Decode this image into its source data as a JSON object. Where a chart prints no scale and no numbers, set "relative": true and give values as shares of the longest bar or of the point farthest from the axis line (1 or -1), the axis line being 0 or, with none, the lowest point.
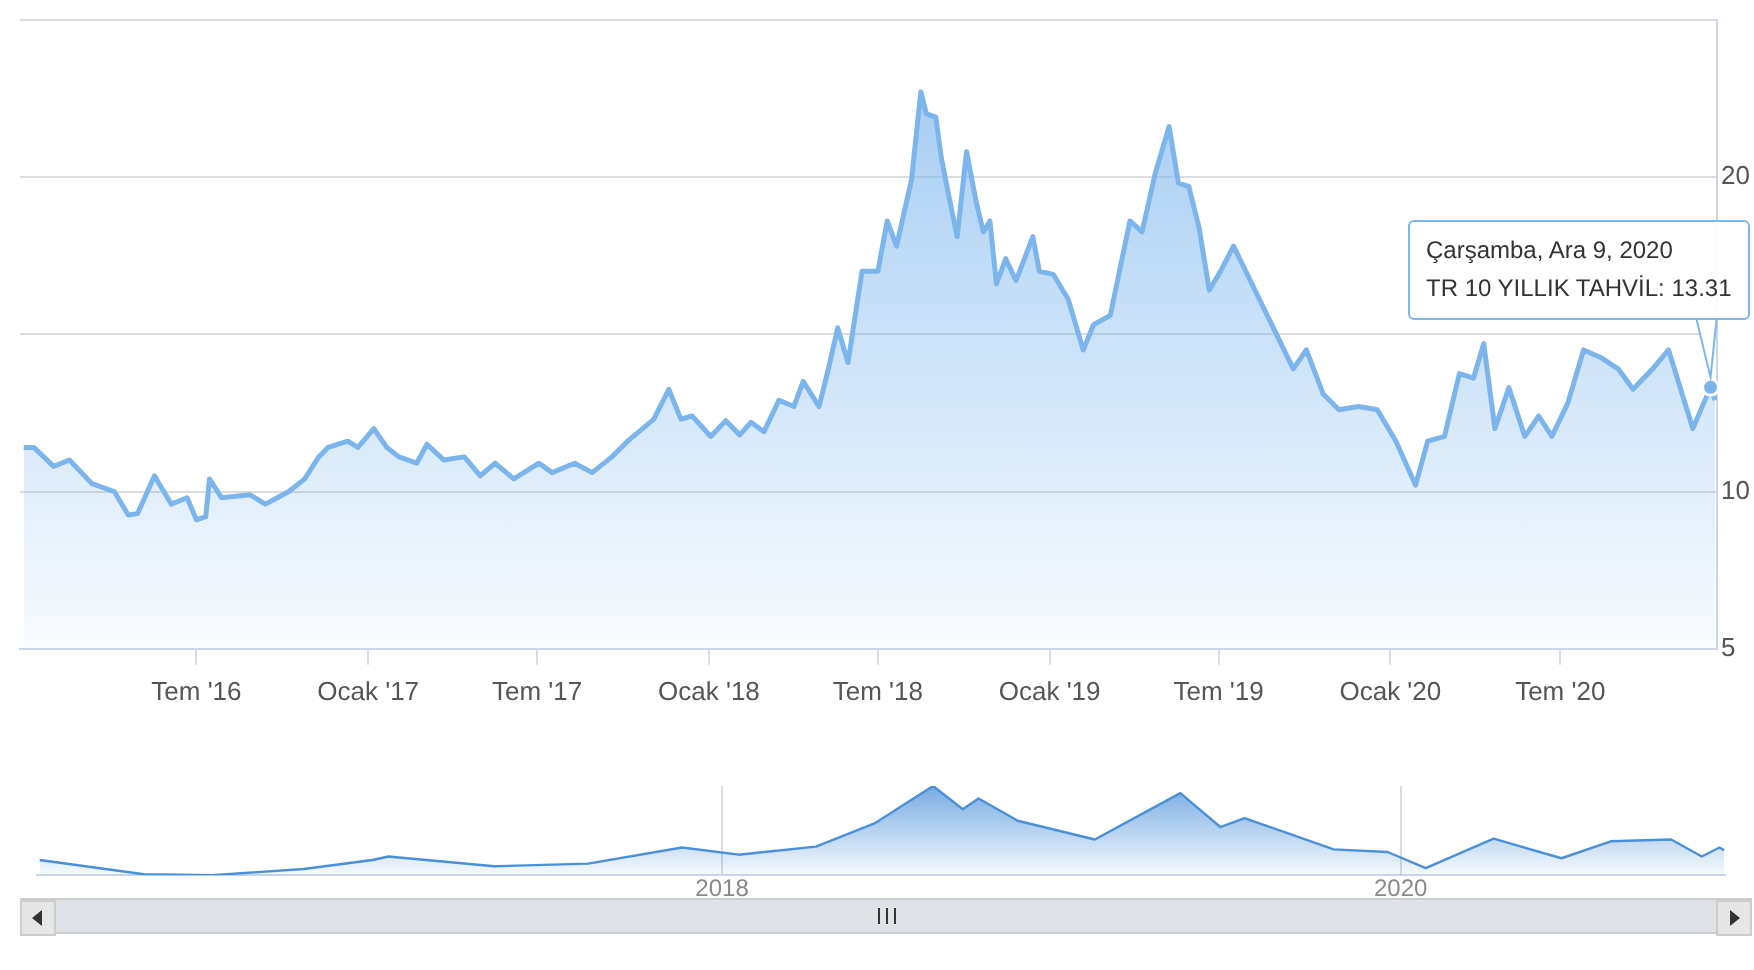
{
  "chart_data": [
    {
      "type": "area",
      "xlim": [
        "2015-12-25",
        "2020-12-16"
      ],
      "xticks": [
        {
          "value": "2016-07-01",
          "label": "Tem '16"
        },
        {
          "value": "2017-01-01",
          "label": "Ocak '17"
        },
        {
          "value": "2017-07-01",
          "label": "Tem '17"
        },
        {
          "value": "2018-01-01",
          "label": "Ocak '18"
        },
        {
          "value": "2018-07-01",
          "label": "Tem '18"
        },
        {
          "value": "2019-01-01",
          "label": "Ocak '19"
        },
        {
          "value": "2019-07-01",
          "label": "Tem '19"
        },
        {
          "value": "2020-01-01",
          "label": "Ocak '20"
        },
        {
          "value": "2020-07-01",
          "label": "Tem '20"
        }
      ],
      "ylim": [
        5,
        25
      ],
      "yticks": [
        5,
        10,
        {
          "value": 15,
          "label": null
        },
        20,
        {
          "value": 25,
          "label": null
        }
      ],
      "grid": "y",
      "legend": false,
      "x": [
        "2015-12-29",
        "2016-01-09",
        "2016-01-30",
        "2016-02-16",
        "2016-03-11",
        "2016-04-04",
        "2016-04-19",
        "2016-04-29",
        "2016-05-17",
        "2016-06-04",
        "2016-06-21",
        "2016-07-01",
        "2016-07-11",
        "2016-07-15",
        "2016-07-28",
        "2016-08-27",
        "2016-09-13",
        "2016-10-08",
        "2016-10-25",
        "2016-11-09",
        "2016-11-19",
        "2016-12-10",
        "2016-12-21",
        "2017-01-07",
        "2017-01-21",
        "2017-02-03",
        "2017-02-22",
        "2017-03-05",
        "2017-03-23",
        "2017-04-14",
        "2017-05-01",
        "2017-05-17",
        "2017-06-06",
        "2017-07-03",
        "2017-07-17",
        "2017-08-10",
        "2017-08-29",
        "2017-09-19",
        "2017-10-06",
        "2017-11-03",
        "2017-11-19",
        "2017-12-02",
        "2017-12-14",
        "2018-01-03",
        "2018-01-19",
        "2018-02-03",
        "2018-02-15",
        "2018-03-01",
        "2018-03-17",
        "2018-04-02",
        "2018-04-12",
        "2018-04-29",
        "2018-05-09",
        "2018-05-19",
        "2018-05-30",
        "2018-06-14",
        "2018-07-01",
        "2018-07-11",
        "2018-07-21",
        "2018-08-06",
        "2018-08-16",
        "2018-08-22",
        "2018-09-01",
        "2018-09-07",
        "2018-09-17",
        "2018-09-24",
        "2018-10-04",
        "2018-10-14",
        "2018-10-22",
        "2018-10-29",
        "2018-11-05",
        "2018-11-15",
        "2018-11-26",
        "2018-12-14",
        "2018-12-21",
        "2019-01-05",
        "2019-01-21",
        "2019-02-06",
        "2019-02-17",
        "2019-03-07",
        "2019-03-28",
        "2019-04-10",
        "2019-04-24",
        "2019-05-09",
        "2019-05-19",
        "2019-05-30",
        "2019-06-10",
        "2019-06-21",
        "2019-07-03",
        "2019-07-17",
        "2019-09-19",
        "2019-10-03",
        "2019-10-21",
        "2019-11-07",
        "2019-11-28",
        "2019-12-18",
        "2020-01-07",
        "2020-01-28",
        "2020-02-10",
        "2020-02-28",
        "2020-03-15",
        "2020-03-30",
        "2020-04-10",
        "2020-04-22",
        "2020-05-07",
        "2020-05-24",
        "2020-06-08",
        "2020-06-22",
        "2020-07-09",
        "2020-07-26",
        "2020-08-14",
        "2020-09-01",
        "2020-09-17",
        "2020-10-08",
        "2020-10-25",
        "2020-11-20",
        "2020-12-09",
        "2020-12-14"
      ],
      "series": [
        {
          "color": "#7cb5ec",
          "values": [
            11.4,
            11.4,
            10.8,
            11.0,
            10.25,
            10.0,
            9.25,
            9.3,
            10.5,
            9.6,
            9.8,
            9.1,
            9.2,
            10.4,
            9.8,
            9.9,
            9.6,
            10.0,
            10.4,
            11.1,
            11.4,
            11.6,
            11.4,
            12.0,
            11.4,
            11.1,
            10.9,
            11.5,
            11.0,
            11.1,
            10.5,
            10.9,
            10.4,
            10.9,
            10.6,
            10.9,
            10.6,
            11.1,
            11.6,
            12.3,
            13.25,
            12.3,
            12.4,
            11.75,
            12.25,
            11.8,
            12.2,
            11.9,
            12.9,
            12.7,
            13.5,
            12.7,
            13.9,
            15.2,
            14.1,
            17.0,
            17.0,
            18.6,
            17.8,
            19.9,
            22.7,
            22.0,
            21.9,
            20.6,
            19.1,
            18.1,
            20.8,
            19.25,
            18.25,
            18.6,
            16.6,
            17.4,
            16.7,
            18.1,
            17.0,
            16.9,
            16.1,
            14.5,
            15.3,
            15.6,
            18.6,
            18.25,
            20.1,
            21.6,
            19.8,
            19.7,
            18.4,
            16.4,
            17.0,
            17.8,
            13.9,
            14.5,
            13.1,
            12.6,
            12.7,
            12.6,
            11.6,
            10.2,
            11.6,
            11.75,
            13.75,
            13.6,
            14.7,
            12.0,
            13.3,
            11.75,
            12.4,
            11.75,
            12.8,
            14.5,
            14.25,
            13.9,
            13.25,
            13.9,
            14.5,
            12.0,
            13.31,
            12.9
          ]
        }
      ],
      "annotations": [
        {
          "text": "Çarşamba, Ara 9, 2020\nTR 10 YILLIK TAHVİL: 13.31",
          "x": "2020-12-09",
          "y": 13.31
        }
      ]
    },
    {
      "type": "area",
      "relative": true,
      "xlim": [
        "2015-12-25",
        "2020-12-16"
      ],
      "xticks": [
        {
          "value": "2018-01-01",
          "label": "2018"
        },
        {
          "value": "2020-01-01",
          "label": "2020"
        }
      ],
      "grid": "x",
      "legend": false,
      "tick_labels": "x",
      "x": [
        "2015-12-29",
        "2016-04-19",
        "2016-07-01",
        "2016-10-08",
        "2016-12-21",
        "2017-01-07",
        "2017-05-01",
        "2017-08-10",
        "2017-11-19",
        "2018-01-19",
        "2018-04-12",
        "2018-06-14",
        "2018-08-16",
        "2018-09-17",
        "2018-10-04",
        "2018-11-15",
        "2019-02-06",
        "2019-05-09",
        "2019-06-21",
        "2019-07-17",
        "2019-10-21",
        "2019-12-18",
        "2020-01-28",
        "2020-04-10",
        "2020-06-22",
        "2020-08-14",
        "2020-10-18",
        "2020-11-20",
        "2020-12-09",
        "2020-12-14"
      ],
      "series": [
        {
          "color": "#4a90d9",
          "values": [
            0.17,
            0.01,
            0,
            0.07,
            0.17,
            0.21,
            0.1,
            0.13,
            0.31,
            0.23,
            0.32,
            0.58,
            1,
            0.74,
            0.86,
            0.61,
            0.4,
            0.92,
            0.54,
            0.64,
            0.29,
            0.26,
            0.08,
            0.41,
            0.19,
            0.38,
            0.4,
            0.21,
            0.31,
            0.28
          ]
        }
      ]
    }
  ]
}
